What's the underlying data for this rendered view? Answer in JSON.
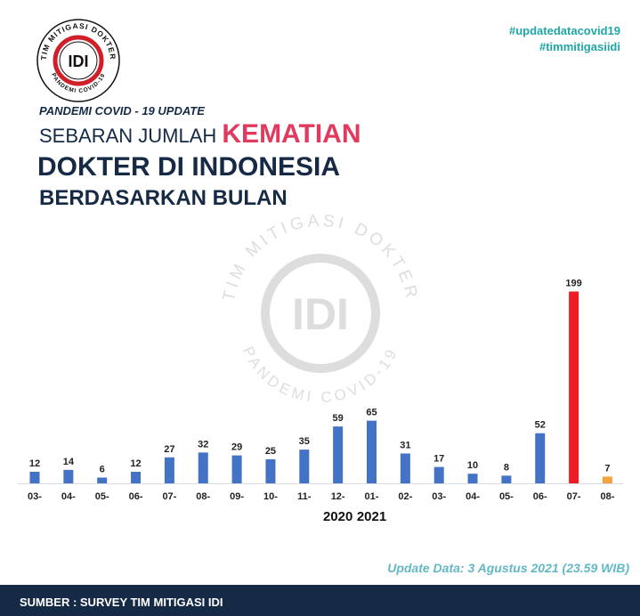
{
  "logo": {
    "ring_text": "TIM MITIGASI DOKTER",
    "lower_text": "PANDEMI COVID-19",
    "mark": "IDI"
  },
  "hashtags": [
    "#updatedatacovid19",
    "#timmitigasiidi"
  ],
  "header": {
    "kicker": "PANDEMI COVID - 19 UPDATE",
    "title_part1": "SEBARAN JUMLAH ",
    "title_highlight": "KEMATIAN",
    "title_line2": "DOKTER DI INDONESIA",
    "title_line3": "BERDASARKAN BULAN"
  },
  "colors": {
    "bar": "#4472c4",
    "highlight": "#ee1c25",
    "partial": "#f4a340",
    "accent": "#e03a5f",
    "navy": "#152b45",
    "teal": "#1fa6a6"
  },
  "chart_data": {
    "type": "bar",
    "categories": [
      "03-",
      "04-",
      "05-",
      "06-",
      "07-",
      "08-",
      "09-",
      "10-",
      "11-",
      "12-",
      "01-",
      "02-",
      "03-",
      "04-",
      "05-",
      "06-",
      "07-",
      "08-"
    ],
    "values": [
      12,
      14,
      6,
      12,
      27,
      32,
      29,
      25,
      35,
      59,
      65,
      31,
      17,
      10,
      8,
      52,
      199,
      7
    ],
    "bar_colors": [
      "#4472c4",
      "#4472c4",
      "#4472c4",
      "#4472c4",
      "#4472c4",
      "#4472c4",
      "#4472c4",
      "#4472c4",
      "#4472c4",
      "#4472c4",
      "#4472c4",
      "#4472c4",
      "#4472c4",
      "#4472c4",
      "#4472c4",
      "#4472c4",
      "#ee1c25",
      "#f4a340"
    ],
    "year_labels": [
      {
        "label": "2020",
        "under_category_index": 9
      },
      {
        "label": "2021",
        "under_category_index": 10
      }
    ],
    "ylim": [
      0,
      205
    ],
    "grid": false,
    "legend": "none"
  },
  "update_text": "Update Data: 3 Agustus 2021 (23.59 WIB)",
  "footer": {
    "source": "SUMBER : SURVEY TIM MITIGASI IDI"
  }
}
